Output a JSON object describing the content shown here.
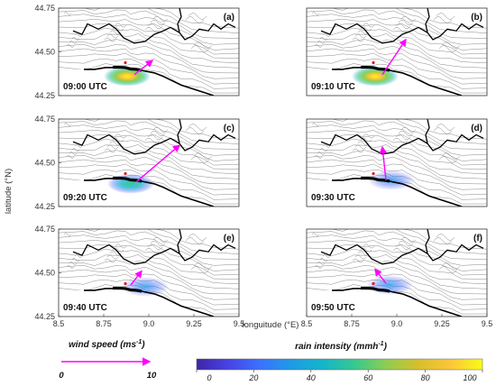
{
  "chart_data": {
    "type": "map",
    "ylabel": "latitude (°N)",
    "xlabel": "longuitude (°E)",
    "xlim": [
      8.5,
      9.5
    ],
    "ylim": [
      44.25,
      44.75
    ],
    "x_ticks": [
      "8.5",
      "8.75",
      "9.0",
      "9.25",
      "9.5"
    ],
    "y_ticks": [
      "44.75",
      "44.50",
      "44.25"
    ],
    "panels": [
      {
        "letter": "(a)",
        "time": "09:00 UTC",
        "wind_vector": {
          "lon": 8.92,
          "lat": 44.37,
          "u": 0.1,
          "v": 0.08
        },
        "rain_center": {
          "lon": 8.88,
          "lat": 44.36
        },
        "rain_peak_mmh": 100
      },
      {
        "letter": "(b)",
        "time": "09:10 UTC",
        "wind_vector": {
          "lon": 8.92,
          "lat": 44.37,
          "u": 0.13,
          "v": 0.2
        },
        "rain_center": {
          "lon": 8.88,
          "lat": 44.36
        },
        "rain_peak_mmh": 100
      },
      {
        "letter": "(c)",
        "time": "09:20 UTC",
        "wind_vector": {
          "lon": 8.93,
          "lat": 44.39,
          "u": 0.24,
          "v": 0.21
        },
        "rain_center": {
          "lon": 8.9,
          "lat": 44.38
        },
        "rain_peak_mmh": 55
      },
      {
        "letter": "(d)",
        "time": "09:30 UTC",
        "wind_vector": {
          "lon": 8.94,
          "lat": 44.4,
          "u": -0.02,
          "v": 0.19
        },
        "rain_center": {
          "lon": 8.97,
          "lat": 44.4
        },
        "rain_peak_mmh": 45
      },
      {
        "letter": "(e)",
        "time": "09:40 UTC",
        "wind_vector": {
          "lon": 8.9,
          "lat": 44.43,
          "u": 0.06,
          "v": 0.08
        },
        "rain_center": {
          "lon": 8.98,
          "lat": 44.42
        },
        "rain_peak_mmh": 40
      },
      {
        "letter": "(f)",
        "time": "09:50 UTC",
        "wind_vector": {
          "lon": 8.94,
          "lat": 44.44,
          "u": -0.06,
          "v": 0.08
        },
        "rain_center": {
          "lon": 8.96,
          "lat": 44.43
        },
        "rain_peak_mmh": 40
      }
    ],
    "wind_legend": {
      "title": "wind speed (ms",
      "title_sup": "-1",
      "title_end": ")",
      "min_label": "0",
      "max_label": "10",
      "color": "#ff00ff"
    },
    "rain_colorbar": {
      "title": "rain intensity (mmh",
      "title_sup": "-1",
      "title_end": ")",
      "ticks": [
        "0",
        "20",
        "40",
        "60",
        "80",
        "100"
      ],
      "range": [
        0,
        100
      ],
      "colormap": [
        "#3e26a8",
        "#4743e4",
        "#3b72fd",
        "#1e9be6",
        "#14b6c8",
        "#38c98d",
        "#91cd4f",
        "#d7bf2c",
        "#fcc63a",
        "#f9fb15"
      ]
    }
  }
}
